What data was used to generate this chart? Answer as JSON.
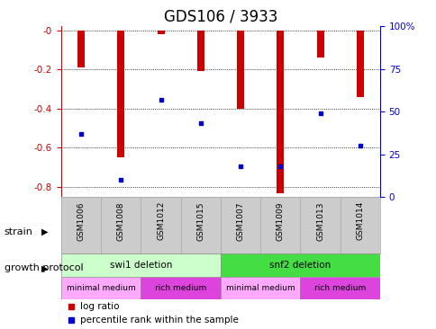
{
  "title": "GDS106 / 3933",
  "samples": [
    "GSM1006",
    "GSM1008",
    "GSM1012",
    "GSM1015",
    "GSM1007",
    "GSM1009",
    "GSM1013",
    "GSM1014"
  ],
  "log_ratios": [
    -0.19,
    -0.65,
    -0.02,
    -0.21,
    -0.4,
    -0.83,
    -0.14,
    -0.34
  ],
  "percentile_ranks": [
    37,
    10,
    57,
    43,
    18,
    18,
    49,
    30
  ],
  "ylim_left": [
    -0.85,
    0.02
  ],
  "ylim_right": [
    0,
    100
  ],
  "left_ticks": [
    0.0,
    -0.2,
    -0.4,
    -0.6,
    -0.8
  ],
  "right_ticks": [
    0,
    25,
    50,
    75,
    100
  ],
  "right_tick_labels": [
    "0",
    "25",
    "50",
    "75",
    "100%"
  ],
  "bar_color": "#cc0000",
  "dot_color": "#0000cc",
  "strain_row": [
    {
      "label": "swi1 deletion",
      "start": 0,
      "end": 4,
      "color": "#ccffcc"
    },
    {
      "label": "snf2 deletion",
      "start": 4,
      "end": 8,
      "color": "#44dd44"
    }
  ],
  "protocol_row": [
    {
      "label": "minimal medium",
      "start": 0,
      "end": 2,
      "color": "#ffaaff"
    },
    {
      "label": "rich medium",
      "start": 2,
      "end": 4,
      "color": "#dd44dd"
    },
    {
      "label": "minimal medium",
      "start": 4,
      "end": 6,
      "color": "#ffaaff"
    },
    {
      "label": "rich medium",
      "start": 6,
      "end": 8,
      "color": "#dd44dd"
    }
  ],
  "background_color": "#ffffff",
  "title_fontsize": 12,
  "axis_label_color_left": "#cc0000",
  "axis_label_color_right": "#0000cc",
  "bar_width": 0.18
}
